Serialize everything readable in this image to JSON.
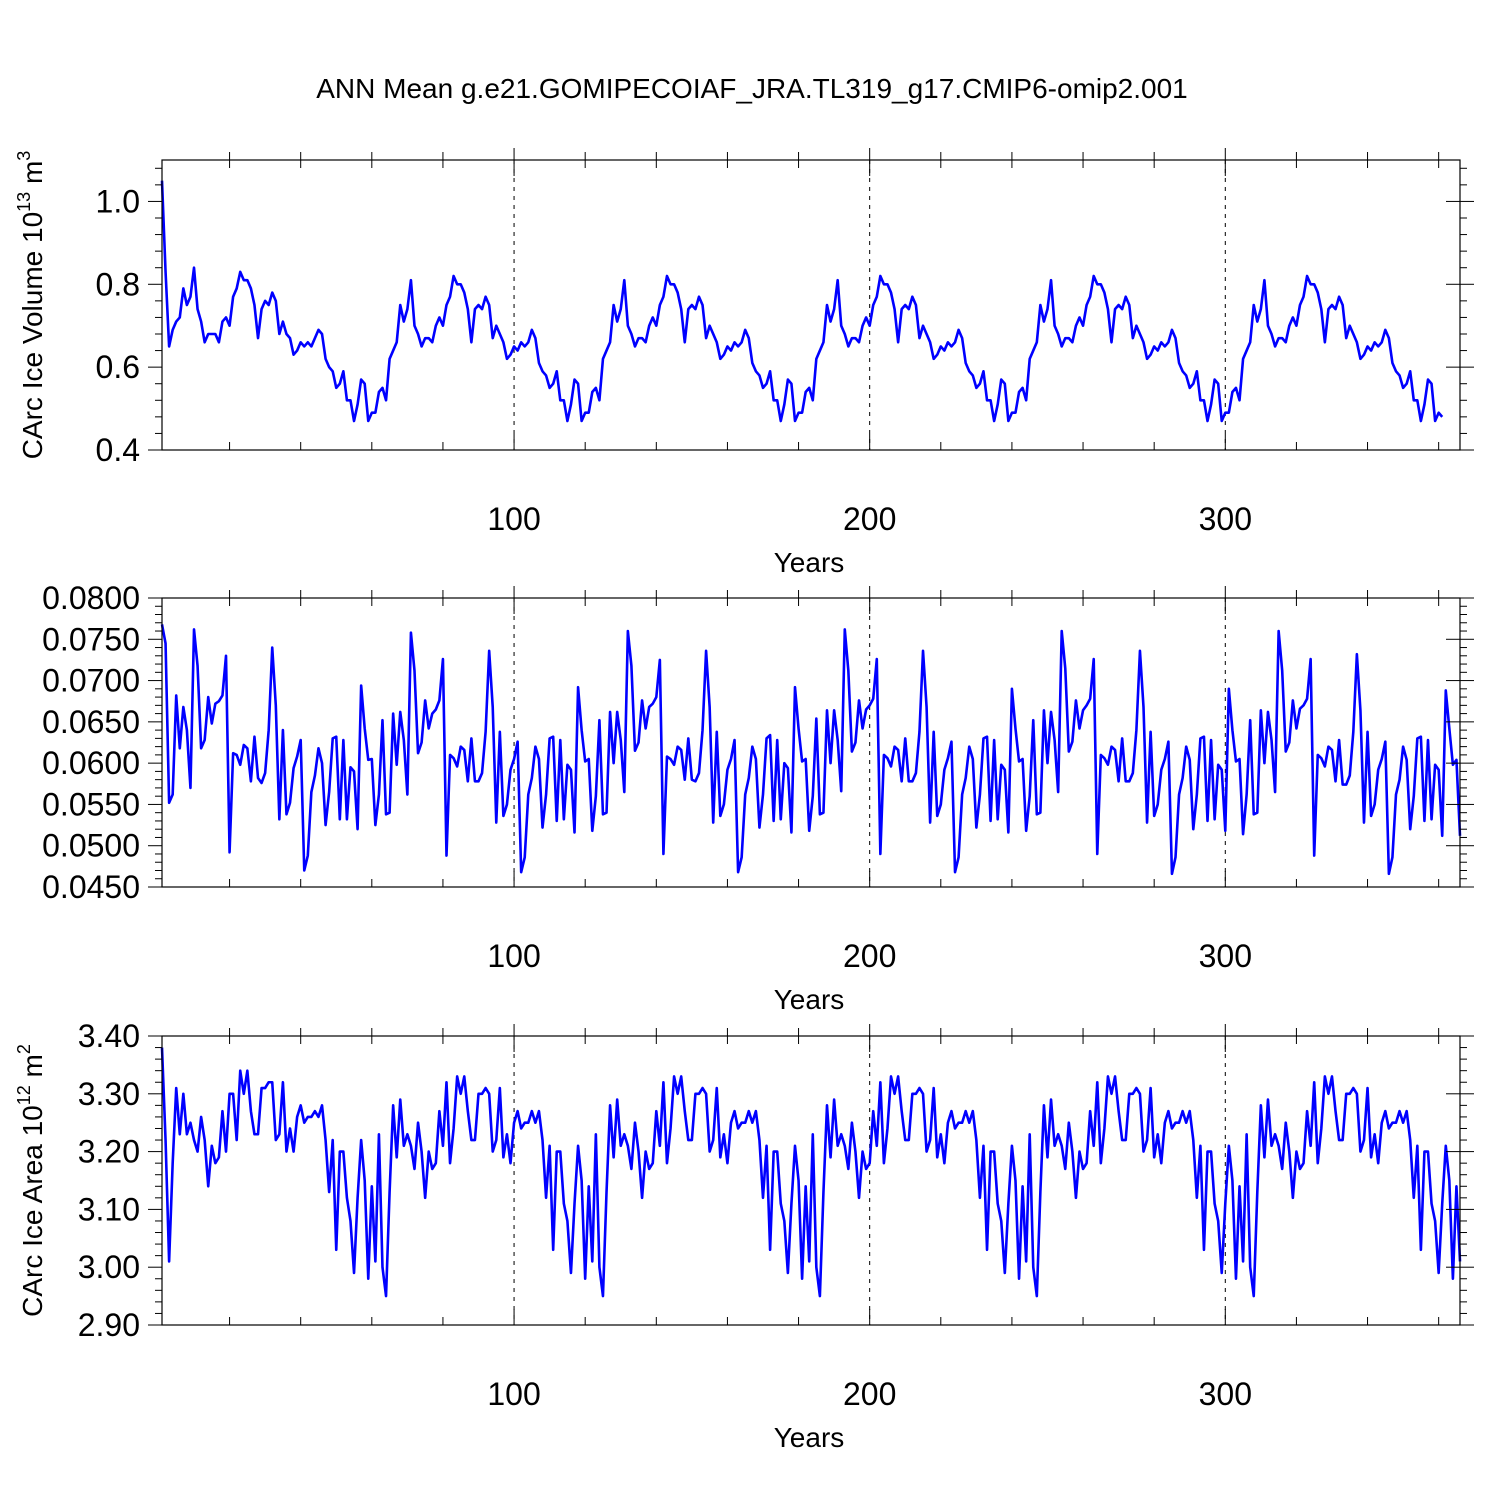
{
  "title": "ANN Mean g.e21.GOMIPECOIAF_JRA.TL319_g17.CMIP6-omip2.001",
  "colors": {
    "series": "#0000ff",
    "axes": "#000000",
    "grid": "#000000"
  },
  "chart_data": [
    {
      "type": "line",
      "title": "",
      "xlabel": "Years",
      "ylabel": "CArc Ice Volume 10",
      "ylabel_sup": "13",
      "ylabel_unit": " m",
      "ylabel_unit_sup": "3",
      "xlim": [
        1,
        366
      ],
      "ylim": [
        0.4,
        1.1
      ],
      "xticks": [
        100,
        200,
        300
      ],
      "xtick_labels": [
        "100",
        "200",
        "300"
      ],
      "yticks": [
        0.4,
        0.6,
        0.8,
        1.0
      ],
      "ytick_labels": [
        "0.4",
        "0.6",
        "0.8",
        "1.0"
      ],
      "grid_x": [
        100,
        200,
        300
      ],
      "x_start": 1,
      "values": [
        1.05,
        0.83,
        0.65,
        0.69,
        0.71,
        0.72,
        0.79,
        0.75,
        0.77,
        0.84,
        0.74,
        0.71,
        0.66,
        0.68,
        0.68,
        0.68,
        0.66,
        0.71,
        0.72,
        0.7,
        0.77,
        0.79,
        0.83,
        0.81,
        0.81,
        0.79,
        0.75,
        0.67,
        0.74,
        0.76,
        0.75,
        0.78,
        0.76,
        0.68,
        0.71,
        0.68,
        0.67,
        0.63,
        0.64,
        0.66,
        0.65,
        0.66,
        0.65,
        0.67,
        0.69,
        0.68,
        0.62,
        0.6,
        0.59,
        0.55,
        0.56,
        0.59,
        0.52,
        0.52,
        0.47,
        0.51,
        0.57,
        0.56,
        0.47,
        0.49,
        0.49,
        0.54,
        0.55,
        0.52,
        0.62,
        0.64,
        0.66,
        0.75,
        0.71,
        0.74,
        0.81,
        0.7,
        0.68,
        0.65,
        0.67,
        0.67,
        0.66,
        0.7,
        0.72,
        0.7,
        0.75,
        0.77,
        0.82,
        0.8,
        0.8,
        0.78,
        0.74,
        0.66,
        0.74,
        0.75,
        0.74,
        0.77,
        0.75,
        0.67,
        0.7,
        0.68,
        0.66,
        0.62,
        0.63,
        0.65,
        0.64,
        0.66,
        0.65,
        0.66,
        0.69,
        0.67,
        0.61,
        0.59,
        0.58,
        0.55,
        0.56,
        0.59,
        0.52,
        0.52,
        0.47,
        0.51,
        0.57,
        0.56,
        0.47,
        0.49,
        0.49,
        0.54,
        0.55,
        0.52,
        0.62,
        0.64,
        0.66,
        0.75,
        0.71,
        0.74,
        0.81,
        0.7,
        0.68,
        0.65,
        0.67,
        0.67,
        0.66,
        0.7,
        0.72,
        0.7,
        0.75,
        0.77,
        0.82,
        0.8,
        0.8,
        0.78,
        0.74,
        0.66,
        0.74,
        0.75,
        0.74,
        0.77,
        0.75,
        0.67,
        0.7,
        0.68,
        0.66,
        0.62,
        0.63,
        0.65,
        0.64,
        0.66,
        0.65,
        0.66,
        0.69,
        0.67,
        0.61,
        0.59,
        0.58,
        0.55,
        0.56,
        0.59,
        0.52,
        0.52,
        0.47,
        0.51,
        0.57,
        0.56,
        0.47,
        0.49,
        0.49,
        0.54,
        0.55,
        0.52,
        0.62,
        0.64,
        0.66,
        0.75,
        0.71,
        0.74,
        0.81,
        0.7,
        0.68,
        0.65,
        0.67,
        0.67,
        0.66,
        0.7,
        0.72,
        0.7,
        0.75,
        0.77,
        0.82,
        0.8,
        0.8,
        0.78,
        0.74,
        0.66,
        0.74,
        0.75,
        0.74,
        0.77,
        0.75,
        0.67,
        0.7,
        0.68,
        0.66,
        0.62,
        0.63,
        0.65,
        0.64,
        0.66,
        0.65,
        0.66,
        0.69,
        0.67,
        0.61,
        0.59,
        0.58,
        0.55,
        0.56,
        0.59,
        0.52,
        0.52,
        0.47,
        0.51,
        0.57,
        0.56,
        0.47,
        0.49,
        0.49,
        0.54,
        0.55,
        0.52,
        0.62,
        0.64,
        0.66,
        0.75,
        0.71,
        0.74,
        0.81,
        0.7,
        0.68,
        0.65,
        0.67,
        0.67,
        0.66,
        0.7,
        0.72,
        0.7,
        0.75,
        0.77,
        0.82,
        0.8,
        0.8,
        0.78,
        0.74,
        0.66,
        0.74,
        0.75,
        0.74,
        0.77,
        0.75,
        0.67,
        0.7,
        0.68,
        0.66,
        0.62,
        0.63,
        0.65,
        0.64,
        0.66,
        0.65,
        0.66,
        0.69,
        0.67,
        0.61,
        0.59,
        0.58,
        0.55,
        0.56,
        0.59,
        0.52,
        0.52,
        0.47,
        0.51,
        0.57,
        0.56,
        0.47,
        0.49,
        0.49,
        0.54,
        0.55,
        0.52,
        0.62,
        0.64,
        0.66,
        0.75,
        0.71,
        0.74,
        0.81,
        0.7,
        0.68,
        0.65,
        0.67,
        0.67,
        0.66,
        0.7,
        0.72,
        0.7,
        0.75,
        0.77,
        0.82,
        0.8,
        0.8,
        0.78,
        0.74,
        0.66,
        0.74,
        0.75,
        0.74,
        0.77,
        0.75,
        0.67,
        0.7,
        0.68,
        0.66,
        0.62,
        0.63,
        0.65,
        0.64,
        0.66,
        0.65,
        0.66,
        0.69,
        0.67,
        0.61,
        0.59,
        0.58,
        0.55,
        0.56,
        0.59,
        0.52,
        0.52,
        0.47,
        0.51,
        0.57,
        0.56,
        0.47,
        0.49,
        0.48
      ]
    },
    {
      "type": "line",
      "title": "",
      "xlabel": "Years",
      "ylabel": "",
      "xlim": [
        1,
        366
      ],
      "ylim": [
        0.045,
        0.08
      ],
      "xticks": [
        100,
        200,
        300
      ],
      "xtick_labels": [
        "100",
        "200",
        "300"
      ],
      "yticks": [
        0.045,
        0.05,
        0.055,
        0.06,
        0.065,
        0.07,
        0.075,
        0.08
      ],
      "ytick_labels": [
        "0.0450",
        "0.0500",
        "0.0550",
        "0.0600",
        "0.0650",
        "0.0700",
        "0.0750",
        "0.0800"
      ],
      "grid_x": [
        100,
        200,
        300
      ],
      "x_start": 1,
      "values": [
        0.0768,
        0.0745,
        0.0552,
        0.0562,
        0.0682,
        0.0618,
        0.0668,
        0.064,
        0.057,
        0.0762,
        0.0718,
        0.0618,
        0.0628,
        0.068,
        0.0648,
        0.0672,
        0.0675,
        0.0682,
        0.073,
        0.0492,
        0.0612,
        0.061,
        0.0598,
        0.0622,
        0.0618,
        0.0578,
        0.0632,
        0.0582,
        0.0576,
        0.0588,
        0.064,
        0.074,
        0.067,
        0.0532,
        0.064,
        0.0538,
        0.0552,
        0.0594,
        0.0608,
        0.0628,
        0.047,
        0.0488,
        0.0565,
        0.0585,
        0.0618,
        0.06,
        0.0525,
        0.0565,
        0.063,
        0.0632,
        0.0532,
        0.0628,
        0.0532,
        0.0595,
        0.059,
        0.052,
        0.0694,
        0.0642,
        0.0604,
        0.0605,
        0.0525,
        0.0562,
        0.0652,
        0.0538,
        0.054,
        0.066,
        0.0598,
        0.0662,
        0.0628,
        0.0562,
        0.0758,
        0.0712,
        0.0612,
        0.0625,
        0.0676,
        0.0642,
        0.066,
        0.0665,
        0.0676,
        0.0726,
        0.0488,
        0.061,
        0.0606,
        0.0596,
        0.062,
        0.0616,
        0.0578,
        0.063,
        0.0578,
        0.0578,
        0.0588,
        0.0638,
        0.0736,
        0.0668,
        0.0528,
        0.0638,
        0.0536,
        0.055,
        0.0592,
        0.0605,
        0.0626,
        0.0468,
        0.0486,
        0.0562,
        0.0582,
        0.062,
        0.0605,
        0.0522,
        0.0562,
        0.063,
        0.0632,
        0.053,
        0.0628,
        0.0532,
        0.0598,
        0.0592,
        0.0516,
        0.0692,
        0.064,
        0.0602,
        0.0605,
        0.0518,
        0.056,
        0.0652,
        0.0538,
        0.054,
        0.0662,
        0.06,
        0.0662,
        0.0628,
        0.0565,
        0.076,
        0.0718,
        0.0615,
        0.0625,
        0.0676,
        0.0642,
        0.0668,
        0.0672,
        0.068,
        0.0725,
        0.049,
        0.0608,
        0.0605,
        0.0598,
        0.062,
        0.0616,
        0.058,
        0.063,
        0.058,
        0.0578,
        0.0588,
        0.064,
        0.0736,
        0.0668,
        0.0528,
        0.0638,
        0.0536,
        0.055,
        0.0592,
        0.0605,
        0.0628,
        0.0468,
        0.0486,
        0.0562,
        0.0582,
        0.062,
        0.0605,
        0.0522,
        0.0562,
        0.063,
        0.0634,
        0.053,
        0.0628,
        0.0532,
        0.06,
        0.0594,
        0.0516,
        0.0692,
        0.0642,
        0.0602,
        0.0605,
        0.0518,
        0.056,
        0.0654,
        0.0538,
        0.054,
        0.0664,
        0.06,
        0.0664,
        0.0628,
        0.0566,
        0.0762,
        0.0712,
        0.0614,
        0.0625,
        0.0676,
        0.0642,
        0.0665,
        0.067,
        0.0678,
        0.0726,
        0.049,
        0.061,
        0.0606,
        0.0596,
        0.062,
        0.0616,
        0.0578,
        0.063,
        0.0578,
        0.0578,
        0.0588,
        0.0638,
        0.0736,
        0.0668,
        0.0528,
        0.0638,
        0.0536,
        0.055,
        0.0592,
        0.0606,
        0.0626,
        0.0468,
        0.0486,
        0.0562,
        0.0582,
        0.062,
        0.0605,
        0.0522,
        0.0562,
        0.063,
        0.0632,
        0.053,
        0.0628,
        0.0532,
        0.0598,
        0.0592,
        0.0516,
        0.069,
        0.0642,
        0.0602,
        0.0605,
        0.0518,
        0.056,
        0.0652,
        0.0538,
        0.054,
        0.0664,
        0.06,
        0.0662,
        0.0628,
        0.0565,
        0.076,
        0.0715,
        0.0614,
        0.0626,
        0.0676,
        0.0642,
        0.0664,
        0.067,
        0.0678,
        0.0726,
        0.049,
        0.061,
        0.0606,
        0.0598,
        0.062,
        0.0616,
        0.0578,
        0.063,
        0.0578,
        0.0578,
        0.0588,
        0.064,
        0.0736,
        0.0668,
        0.0528,
        0.0638,
        0.0536,
        0.055,
        0.0592,
        0.0605,
        0.0626,
        0.0466,
        0.0486,
        0.0562,
        0.0582,
        0.062,
        0.0604,
        0.052,
        0.0562,
        0.063,
        0.0632,
        0.053,
        0.0628,
        0.0532,
        0.0598,
        0.0592,
        0.0518,
        0.069,
        0.064,
        0.0602,
        0.0605,
        0.0514,
        0.0562,
        0.0652,
        0.0538,
        0.054,
        0.0664,
        0.06,
        0.0662,
        0.0628,
        0.0565,
        0.076,
        0.0712,
        0.0614,
        0.0625,
        0.0676,
        0.0642,
        0.0666,
        0.067,
        0.0678,
        0.0726,
        0.0488,
        0.061,
        0.0606,
        0.0596,
        0.062,
        0.0616,
        0.0578,
        0.0628,
        0.0574,
        0.0574,
        0.0585,
        0.0638,
        0.0732,
        0.0664,
        0.0528,
        0.0638,
        0.0536,
        0.055,
        0.0592,
        0.0605,
        0.0626,
        0.0466,
        0.0486,
        0.0562,
        0.058,
        0.062,
        0.0604,
        0.052,
        0.056,
        0.063,
        0.0632,
        0.053,
        0.0628,
        0.0532,
        0.0598,
        0.0592,
        0.0512,
        0.0688,
        0.0642,
        0.0598,
        0.0604,
        0.0512
      ]
    },
    {
      "type": "line",
      "title": "",
      "xlabel": "Years",
      "ylabel": "CArc Ice Area 10",
      "ylabel_sup": "12",
      "ylabel_unit": " m",
      "ylabel_unit_sup": "2",
      "xlim": [
        1,
        366
      ],
      "ylim": [
        2.9,
        3.4
      ],
      "xticks": [
        100,
        200,
        300
      ],
      "xtick_labels": [
        "100",
        "200",
        "300"
      ],
      "yticks": [
        2.9,
        3.0,
        3.1,
        3.2,
        3.3,
        3.4
      ],
      "ytick_labels": [
        "2.90",
        "3.00",
        "3.10",
        "3.20",
        "3.30",
        "3.40"
      ],
      "grid_x": [
        100,
        200,
        300
      ],
      "x_start": 1,
      "values": [
        3.38,
        3.22,
        3.01,
        3.18,
        3.31,
        3.23,
        3.3,
        3.23,
        3.25,
        3.22,
        3.2,
        3.26,
        3.22,
        3.14,
        3.21,
        3.18,
        3.19,
        3.27,
        3.2,
        3.3,
        3.3,
        3.22,
        3.34,
        3.3,
        3.34,
        3.27,
        3.23,
        3.23,
        3.31,
        3.31,
        3.32,
        3.32,
        3.22,
        3.23,
        3.32,
        3.2,
        3.24,
        3.2,
        3.26,
        3.28,
        3.25,
        3.26,
        3.26,
        3.27,
        3.26,
        3.28,
        3.22,
        3.13,
        3.22,
        3.03,
        3.2,
        3.2,
        3.12,
        3.08,
        2.99,
        3.12,
        3.22,
        3.15,
        2.98,
        3.14,
        3.01,
        3.23,
        3.0,
        2.95,
        3.13,
        3.28,
        3.19,
        3.29,
        3.21,
        3.23,
        3.21,
        3.17,
        3.25,
        3.2,
        3.12,
        3.2,
        3.17,
        3.18,
        3.27,
        3.21,
        3.32,
        3.18,
        3.24,
        3.33,
        3.3,
        3.33,
        3.27,
        3.22,
        3.22,
        3.3,
        3.3,
        3.31,
        3.3,
        3.2,
        3.22,
        3.31,
        3.19,
        3.23,
        3.18,
        3.25,
        3.27,
        3.24,
        3.25,
        3.25,
        3.27,
        3.25,
        3.27,
        3.22,
        3.12,
        3.21,
        3.03,
        3.2,
        3.2,
        3.11,
        3.08,
        2.99,
        3.11,
        3.21,
        3.15,
        2.98,
        3.14,
        3.01,
        3.23,
        3.0,
        2.95,
        3.13,
        3.28,
        3.19,
        3.29,
        3.21,
        3.23,
        3.21,
        3.17,
        3.25,
        3.2,
        3.12,
        3.2,
        3.17,
        3.18,
        3.27,
        3.21,
        3.32,
        3.18,
        3.24,
        3.33,
        3.3,
        3.33,
        3.27,
        3.22,
        3.22,
        3.3,
        3.3,
        3.31,
        3.3,
        3.2,
        3.22,
        3.31,
        3.19,
        3.23,
        3.18,
        3.25,
        3.27,
        3.24,
        3.25,
        3.25,
        3.27,
        3.25,
        3.27,
        3.22,
        3.12,
        3.21,
        3.03,
        3.2,
        3.2,
        3.11,
        3.08,
        2.99,
        3.11,
        3.21,
        3.15,
        2.98,
        3.14,
        3.01,
        3.23,
        3.0,
        2.95,
        3.13,
        3.28,
        3.19,
        3.29,
        3.21,
        3.23,
        3.21,
        3.17,
        3.25,
        3.2,
        3.12,
        3.2,
        3.17,
        3.18,
        3.27,
        3.21,
        3.32,
        3.18,
        3.24,
        3.33,
        3.3,
        3.33,
        3.27,
        3.22,
        3.22,
        3.3,
        3.3,
        3.31,
        3.3,
        3.2,
        3.22,
        3.31,
        3.19,
        3.23,
        3.18,
        3.25,
        3.27,
        3.24,
        3.25,
        3.25,
        3.27,
        3.25,
        3.27,
        3.22,
        3.12,
        3.21,
        3.03,
        3.2,
        3.2,
        3.11,
        3.08,
        2.99,
        3.11,
        3.21,
        3.15,
        2.98,
        3.14,
        3.01,
        3.23,
        3.0,
        2.95,
        3.13,
        3.28,
        3.19,
        3.29,
        3.21,
        3.23,
        3.21,
        3.17,
        3.25,
        3.2,
        3.12,
        3.2,
        3.17,
        3.18,
        3.27,
        3.21,
        3.32,
        3.18,
        3.24,
        3.33,
        3.3,
        3.33,
        3.27,
        3.22,
        3.22,
        3.3,
        3.3,
        3.31,
        3.3,
        3.2,
        3.22,
        3.31,
        3.19,
        3.23,
        3.18,
        3.25,
        3.27,
        3.24,
        3.25,
        3.25,
        3.27,
        3.25,
        3.27,
        3.22,
        3.12,
        3.21,
        3.03,
        3.2,
        3.2,
        3.11,
        3.08,
        2.99,
        3.11,
        3.21,
        3.15,
        2.98,
        3.14,
        3.01,
        3.23,
        3.0,
        2.95,
        3.13,
        3.28,
        3.19,
        3.29,
        3.21,
        3.23,
        3.21,
        3.17,
        3.25,
        3.2,
        3.12,
        3.2,
        3.17,
        3.18,
        3.27,
        3.21,
        3.32,
        3.18,
        3.24,
        3.33,
        3.3,
        3.33,
        3.27,
        3.22,
        3.22,
        3.3,
        3.3,
        3.31,
        3.3,
        3.2,
        3.22,
        3.31,
        3.19,
        3.23,
        3.18,
        3.25,
        3.27,
        3.24,
        3.25,
        3.25,
        3.27,
        3.25,
        3.27,
        3.22,
        3.12,
        3.21,
        3.03,
        3.2,
        3.2,
        3.11,
        3.08,
        2.99,
        3.11,
        3.21,
        3.15,
        2.98,
        3.14,
        3.01
      ]
    }
  ]
}
